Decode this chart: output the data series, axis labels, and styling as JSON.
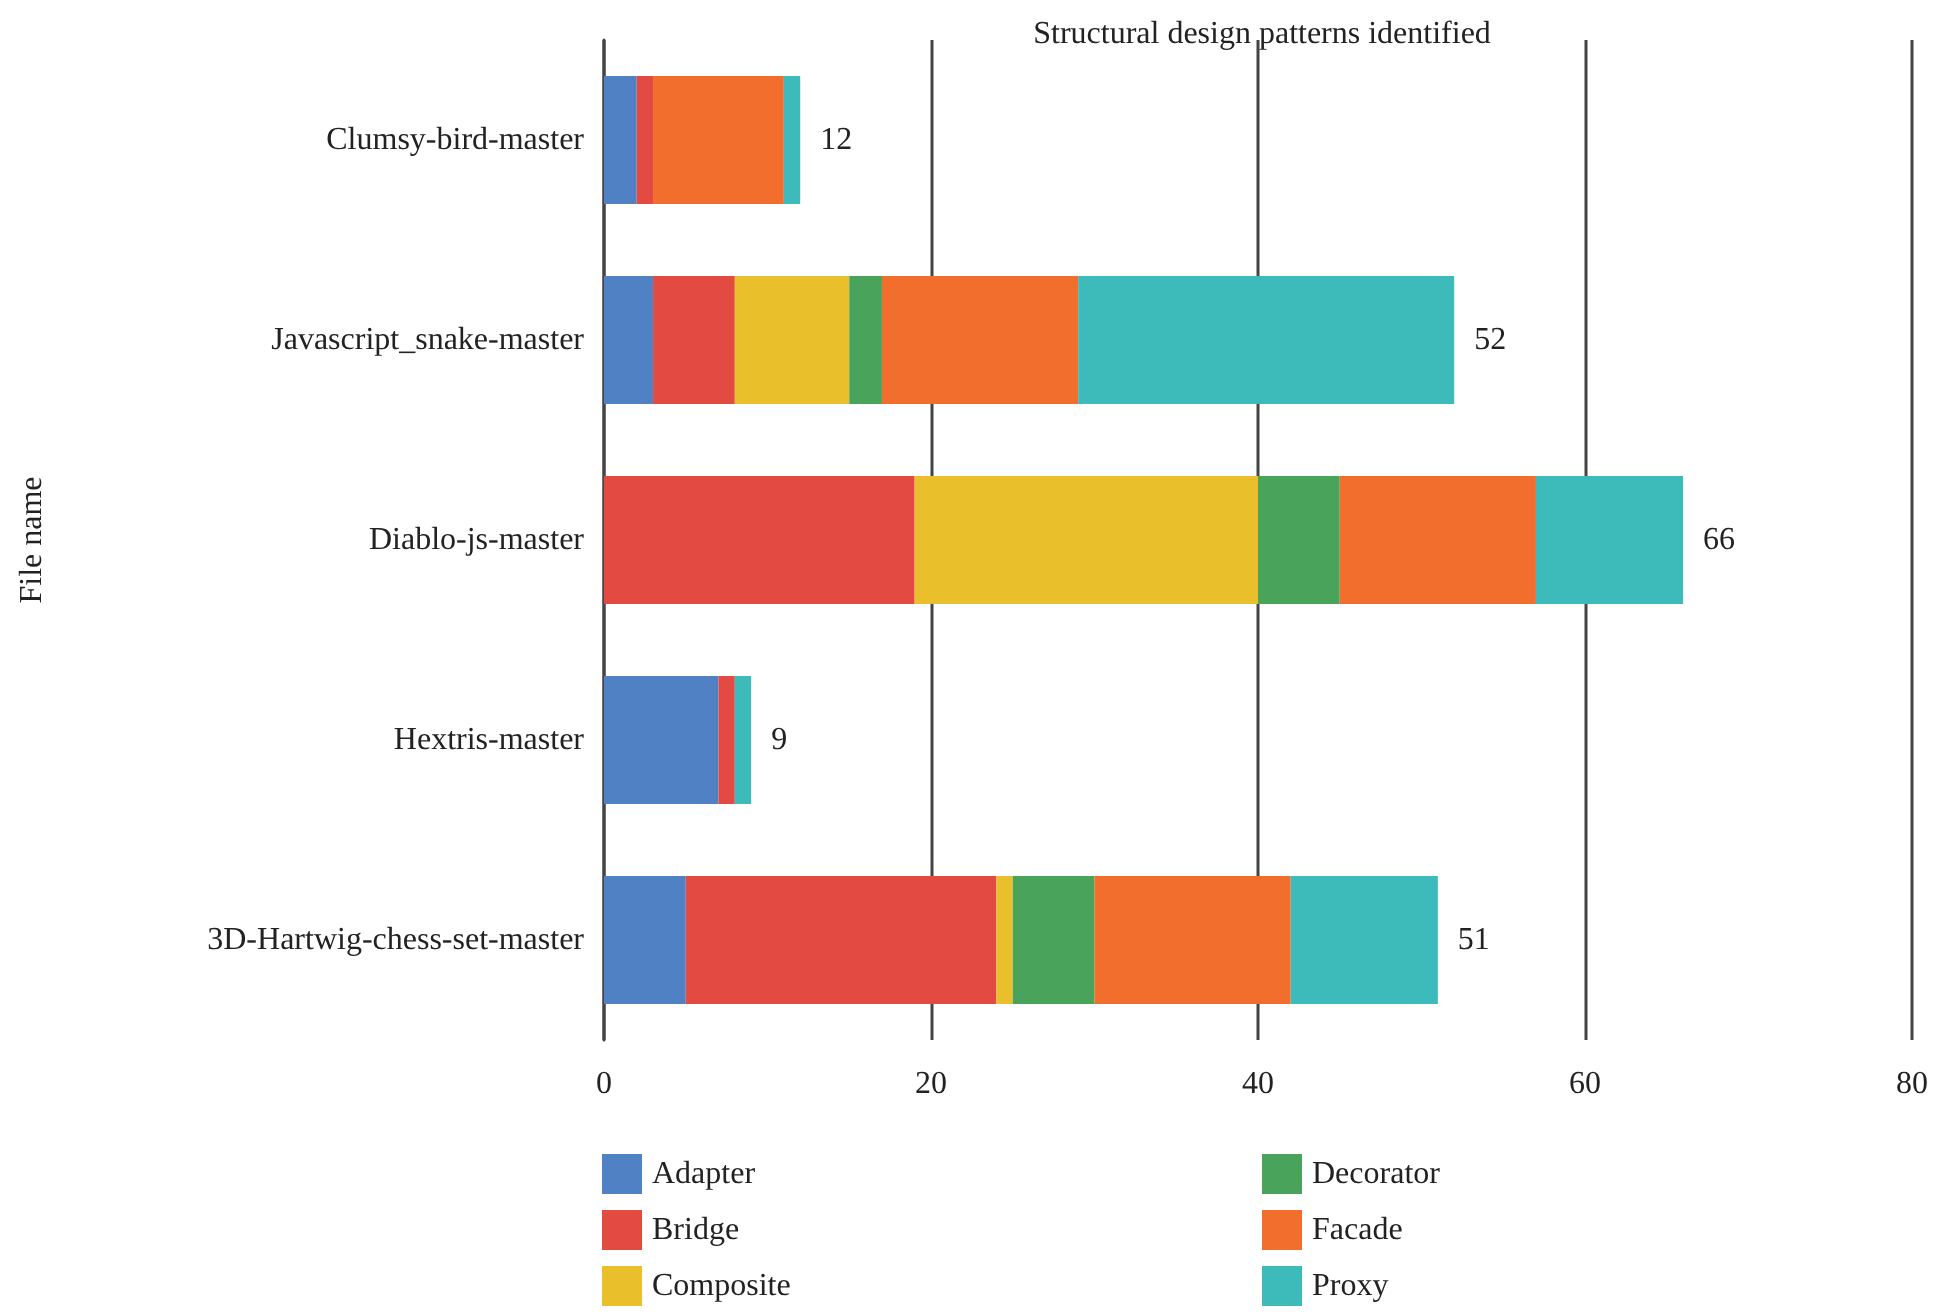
{
  "chart_data": {
    "type": "bar",
    "orientation": "horizontal",
    "stacked": true,
    "title": "Structural design patterns identified",
    "ylabel": "File name",
    "categories": [
      "Clumsy-bird-master",
      "Javascript_snake-master",
      "Diablo-js-master",
      "Hextris-master",
      "3D-Hartwig-chess-set-master"
    ],
    "series": [
      {
        "name": "Adapter",
        "color": "#4f81c4",
        "values": [
          2,
          3,
          0,
          7,
          5
        ]
      },
      {
        "name": "Bridge",
        "color": "#e34a42",
        "values": [
          1,
          5,
          19,
          1,
          19
        ]
      },
      {
        "name": "Composite",
        "color": "#eabf2c",
        "values": [
          0,
          7,
          21,
          0,
          1
        ]
      },
      {
        "name": "Decorator",
        "color": "#4aa35b",
        "values": [
          0,
          2,
          5,
          0,
          5
        ]
      },
      {
        "name": "Facade",
        "color": "#f16e2d",
        "values": [
          8,
          12,
          12,
          0,
          12
        ]
      },
      {
        "name": "Proxy",
        "color": "#3dbaba",
        "values": [
          1,
          23,
          9,
          1,
          9
        ]
      }
    ],
    "totals": [
      "12",
      "52",
      "66",
      "9",
      "51"
    ],
    "xlim": [
      0,
      80
    ],
    "xticks": [
      0,
      20,
      40,
      60,
      80
    ],
    "grid": "x",
    "legend": "bottom"
  }
}
